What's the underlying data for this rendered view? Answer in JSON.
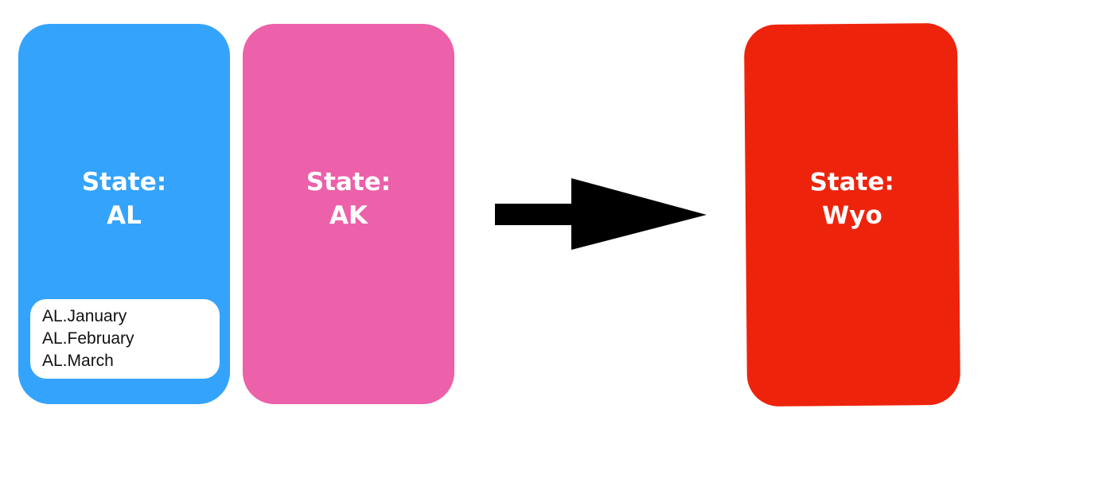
{
  "colors": {
    "card_al": "#34a3fc",
    "card_ak": "#ec61a9",
    "card_wyo": "#ee230c",
    "arrow": "#000000"
  },
  "cards": [
    {
      "line1": "State:",
      "line2": "AL",
      "months": [
        "AL.January",
        "AL.February",
        "AL.March"
      ]
    },
    {
      "line1": "State:",
      "line2": "AK"
    },
    {
      "line1": "State:",
      "line2": "Wyo"
    }
  ],
  "arrow": {
    "icon": "right-arrow-icon"
  }
}
